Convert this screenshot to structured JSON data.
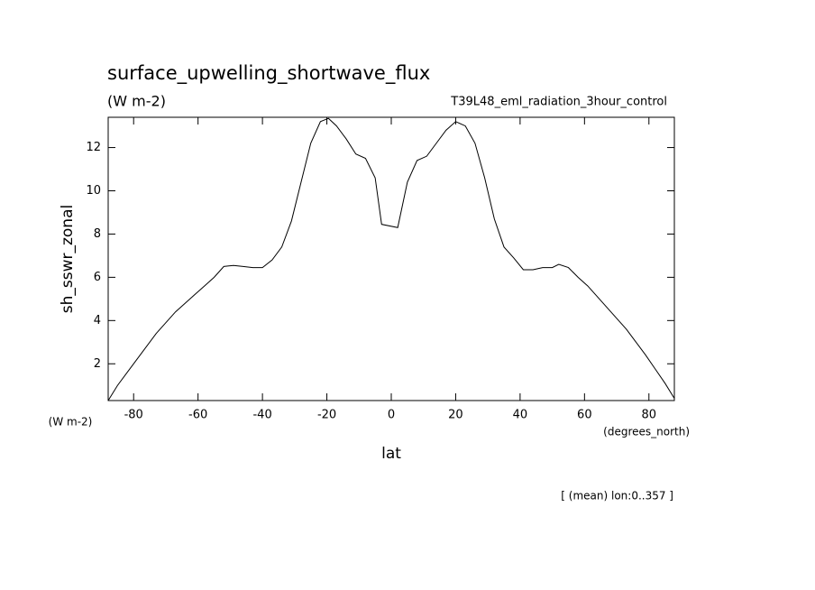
{
  "chart_data": {
    "type": "line",
    "title": "surface_upwelling_shortwave_flux",
    "units": "(W m-2)",
    "subtitle": "T39L48_eml_radiation_3hour_control",
    "y_label": "sh_sswr_zonal",
    "y_units": "(W m-2)",
    "x_label": "lat",
    "x_units": "(degrees_north)",
    "footnote": "[ (mean) lon:0..357 ]",
    "x": [
      -87.9,
      -85,
      -82,
      -79,
      -76,
      -73,
      -70,
      -67,
      -64,
      -61,
      -58,
      -55,
      -52,
      -49,
      -46,
      -43,
      -40,
      -37,
      -34,
      -31,
      -28,
      -25,
      -22,
      -19.5,
      -17,
      -14,
      -11,
      -8,
      -5,
      -3,
      2,
      5,
      8,
      11,
      14,
      17,
      20,
      23,
      26,
      29,
      32,
      35,
      38,
      41,
      44,
      47,
      50,
      52,
      55,
      58,
      61,
      64,
      67,
      70,
      73,
      76,
      79,
      82,
      85,
      87.9
    ],
    "series": [
      {
        "name": "sh_sswr_zonal",
        "color": "#000000",
        "values": [
          0.3,
          1.0,
          1.6,
          2.2,
          2.8,
          3.4,
          3.9,
          4.4,
          4.8,
          5.2,
          5.6,
          6.0,
          6.5,
          6.55,
          6.5,
          6.45,
          6.45,
          6.8,
          7.4,
          8.6,
          10.4,
          12.2,
          13.2,
          13.35,
          13.0,
          12.4,
          11.7,
          11.5,
          10.6,
          8.45,
          8.3,
          10.4,
          11.4,
          11.6,
          12.2,
          12.8,
          13.2,
          13.0,
          12.2,
          10.6,
          8.7,
          7.4,
          6.9,
          6.35,
          6.35,
          6.45,
          6.45,
          6.6,
          6.45,
          6.0,
          5.6,
          5.1,
          4.6,
          4.1,
          3.6,
          3.0,
          2.4,
          1.75,
          1.1,
          0.4
        ]
      }
    ],
    "xlim": [
      -87.9,
      87.9
    ],
    "ylim": [
      0.3,
      13.4
    ],
    "xticks": [
      -80,
      -60,
      -40,
      -20,
      0,
      20,
      40,
      60,
      80
    ],
    "yticks": [
      2,
      4,
      6,
      8,
      10,
      12
    ]
  }
}
